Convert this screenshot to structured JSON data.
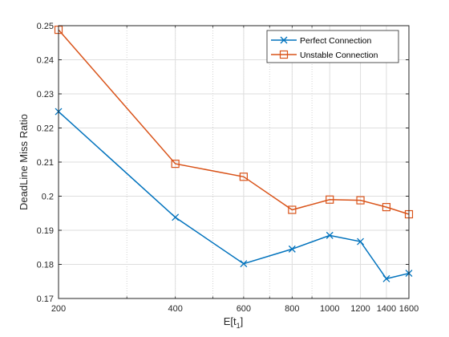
{
  "chart_data": {
    "type": "line",
    "x_scale": "log",
    "xlabel": "E[t",
    "xlabel_sub": "1",
    "xlabel_tail": "]",
    "ylabel": "DeadLine Miss Ratio",
    "xlim": [
      200,
      1600
    ],
    "ylim": [
      0.17,
      0.25
    ],
    "x_ticks": [
      200,
      400,
      600,
      800,
      1000,
      1200,
      1400,
      1600
    ],
    "x_tick_labels": [
      "200",
      "400",
      "600",
      "800",
      "1000",
      "1200",
      "1400",
      "1600"
    ],
    "y_ticks": [
      0.17,
      0.18,
      0.19,
      0.2,
      0.21,
      0.22,
      0.23,
      0.24,
      0.25
    ],
    "y_tick_labels": [
      "0.17",
      "0.18",
      "0.19",
      "0.2",
      "0.21",
      "0.22",
      "0.23",
      "0.24",
      "0.25"
    ],
    "grid": true,
    "legend_position": "top-right",
    "x": [
      200,
      400,
      600,
      800,
      1000,
      1200,
      1400,
      1600
    ],
    "series": [
      {
        "name": "Perfect Connection",
        "marker": "x",
        "color": "#0072BD",
        "values": [
          0.2248,
          0.1938,
          0.1802,
          0.1845,
          0.1885,
          0.1867,
          0.1758,
          0.1774
        ]
      },
      {
        "name": "Unstable Connection",
        "marker": "square",
        "color": "#D95319",
        "values": [
          0.2488,
          0.2095,
          0.2057,
          0.196,
          0.199,
          0.1988,
          0.1968,
          0.1947
        ]
      }
    ]
  }
}
